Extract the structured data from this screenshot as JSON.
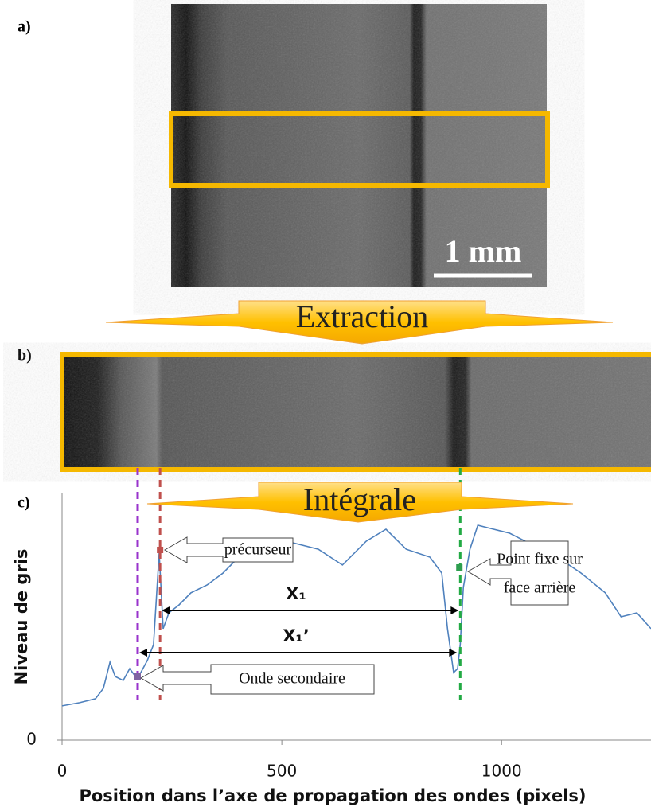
{
  "panels": {
    "a": "a)",
    "b": "b)",
    "c": "c)"
  },
  "scale_bar": "1 mm",
  "arrows": [
    "Extraction",
    "Intégrale"
  ],
  "chart_data": {
    "type": "line",
    "x_label": "Position dans l’axe de propagation des ondes (pixels)",
    "y_label": "Niveau de gris",
    "xlim": [
      0,
      1340
    ],
    "ylim": [
      0,
      100
    ],
    "xticks": [
      0,
      500,
      1000
    ],
    "yticks": [
      0
    ],
    "color": "#4f81bd",
    "x": [
      0,
      40,
      76,
      94,
      109,
      121,
      139,
      154,
      167,
      179,
      194,
      208,
      221,
      230,
      243,
      266,
      293,
      330,
      366,
      402,
      457,
      511,
      583,
      638,
      692,
      737,
      783,
      837,
      864,
      877,
      891,
      900,
      906,
      913,
      928,
      946,
      982,
      1018,
      1054,
      1127,
      1181,
      1236,
      1272,
      1308,
      1340
    ],
    "values": [
      13.9,
      15.2,
      16.8,
      21.0,
      31.6,
      25.8,
      24.2,
      29.0,
      25.8,
      27.4,
      32.3,
      38.7,
      75.8,
      45.2,
      51.6,
      54.8,
      59.7,
      62.9,
      67.7,
      74.2,
      77.4,
      80.6,
      77.4,
      71.0,
      80.6,
      85.5,
      77.4,
      74.2,
      67.7,
      45.2,
      27.4,
      29.0,
      38.7,
      61.9,
      77.4,
      87.1,
      85.5,
      83.9,
      80.6,
      74.2,
      67.7,
      59.7,
      50.0,
      51.6,
      45.2
    ],
    "markers": [
      {
        "x": 223,
        "y": 77.1,
        "color": "#c0504d"
      },
      {
        "x": 904,
        "y": 70.0,
        "color": "#2e9e4f"
      },
      {
        "x": 172,
        "y": 25.8,
        "color": "#8064a2"
      }
    ],
    "vlines": [
      {
        "x": 172,
        "color": "#9933cc"
      },
      {
        "x": 223,
        "color": "#c0504d"
      },
      {
        "x": 906,
        "color": "#22aa44"
      }
    ],
    "annotations": {
      "precursor": "précurseur",
      "fixed_point": [
        "Point fixe sur",
        "face arrière"
      ],
      "secondary": "Onde secondaire",
      "x1": "X₁",
      "x1p": "X₁’"
    }
  }
}
